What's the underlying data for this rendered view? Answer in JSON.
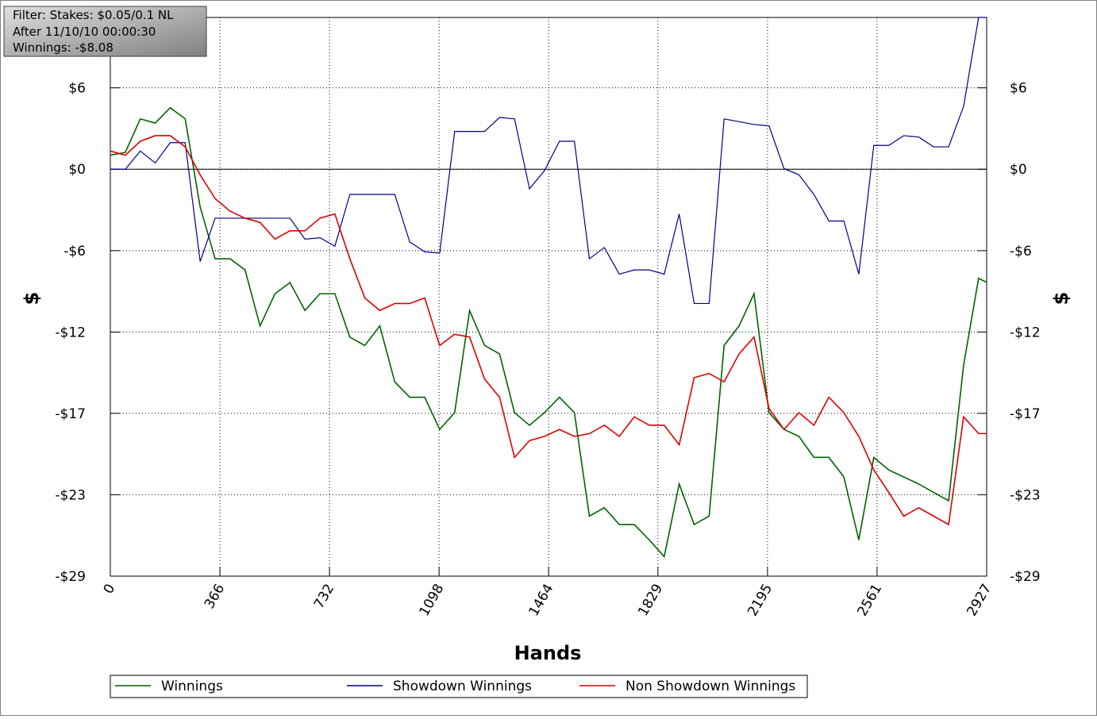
{
  "chart_data": {
    "type": "line",
    "annotations": [
      "Filter: Stakes: $0.05/0.1 NL",
      "After 11/10/10 00:00:30",
      "Winnings: -$8.08"
    ],
    "xlabel": "Hands",
    "ylabel": "$",
    "x": [
      0,
      50,
      100,
      150,
      200,
      250,
      300,
      350,
      400,
      450,
      500,
      550,
      600,
      650,
      700,
      750,
      800,
      850,
      900,
      950,
      1000,
      1050,
      1100,
      1150,
      1200,
      1250,
      1300,
      1350,
      1400,
      1450,
      1500,
      1550,
      1600,
      1650,
      1700,
      1750,
      1800,
      1850,
      1900,
      1950,
      2000,
      2050,
      2100,
      2150,
      2200,
      2250,
      2300,
      2350,
      2400,
      2450,
      2500,
      2550,
      2600,
      2650,
      2700,
      2750,
      2800,
      2850,
      2900,
      2927
    ],
    "xlim": [
      0,
      2927
    ],
    "xticks": [
      0,
      366,
      732,
      1098,
      1464,
      1829,
      2195,
      2561,
      2927
    ],
    "ylim": [
      -29.09,
      10.85
    ],
    "yticks": [
      {
        "value": 5.82,
        "label": "$6"
      },
      {
        "value": 0,
        "label": "$0"
      },
      {
        "value": -5.82,
        "label": "-$6"
      },
      {
        "value": -11.64,
        "label": "-$12"
      },
      {
        "value": -17.45,
        "label": "-$17"
      },
      {
        "value": -23.27,
        "label": "-$23"
      },
      {
        "value": -29.09,
        "label": "-$29"
      }
    ],
    "grid": true,
    "legend": "bottom",
    "series": [
      {
        "name": "Winnings",
        "color": "#006400",
        "values": [
          1.0,
          1.2,
          3.6,
          3.3,
          4.4,
          3.6,
          -2.7,
          -6.4,
          -6.4,
          -7.2,
          -11.2,
          -8.9,
          -8.1,
          -10.1,
          -8.9,
          -8.9,
          -12.0,
          -12.6,
          -11.2,
          -15.2,
          -16.3,
          -16.3,
          -18.6,
          -17.4,
          -10.1,
          -12.6,
          -13.2,
          -17.4,
          -18.3,
          -17.4,
          -16.3,
          -17.4,
          -24.8,
          -24.2,
          -25.4,
          -25.4,
          -26.5,
          -27.7,
          -22.5,
          -25.4,
          -24.8,
          -12.6,
          -11.2,
          -8.9,
          -17.4,
          -18.6,
          -19.1,
          -20.6,
          -20.6,
          -22.0,
          -26.5,
          -20.6,
          -21.5,
          -22.0,
          -22.5,
          -23.1,
          -23.7,
          -14.0,
          -7.8,
          -8.08
        ]
      },
      {
        "name": "Showdown Winnings",
        "color": "#00008b",
        "values": [
          0.0,
          0.0,
          1.3,
          0.45,
          1.9,
          1.9,
          -6.6,
          -3.5,
          -3.5,
          -3.5,
          -3.5,
          -3.5,
          -3.5,
          -5.0,
          -4.9,
          -5.5,
          -1.8,
          -1.8,
          -1.8,
          -1.8,
          -5.2,
          -5.9,
          -6.0,
          2.7,
          2.7,
          2.7,
          3.7,
          3.6,
          -1.4,
          -0.1,
          2.0,
          2.0,
          -6.4,
          -5.6,
          -7.5,
          -7.2,
          -7.2,
          -7.5,
          -3.2,
          -9.6,
          -9.6,
          3.6,
          3.4,
          3.2,
          3.1,
          0.05,
          -0.4,
          -1.8,
          -3.7,
          -3.7,
          -7.5,
          1.7,
          1.7,
          2.4,
          2.3,
          1.6,
          1.6,
          4.5,
          10.85,
          10.85
        ]
      },
      {
        "name": "Non Showdown Winnings",
        "color": "#dd0000",
        "values": [
          1.3,
          1.0,
          2.0,
          2.4,
          2.4,
          1.6,
          -0.4,
          -2.1,
          -3.0,
          -3.5,
          -3.8,
          -5.0,
          -4.4,
          -4.4,
          -3.5,
          -3.2,
          -6.4,
          -9.2,
          -10.1,
          -9.6,
          -9.6,
          -9.2,
          -12.6,
          -11.8,
          -12.0,
          -15.0,
          -16.3,
          -20.6,
          -19.4,
          -19.1,
          -18.6,
          -19.1,
          -18.9,
          -18.3,
          -19.1,
          -17.7,
          -18.3,
          -18.3,
          -19.7,
          -14.9,
          -14.6,
          -15.2,
          -13.2,
          -12.0,
          -17.1,
          -18.6,
          -17.4,
          -18.3,
          -16.3,
          -17.4,
          -19.1,
          -21.5,
          -23.1,
          -24.8,
          -24.2,
          -24.8,
          -25.4,
          -17.7,
          -18.9,
          -18.9
        ]
      }
    ]
  }
}
